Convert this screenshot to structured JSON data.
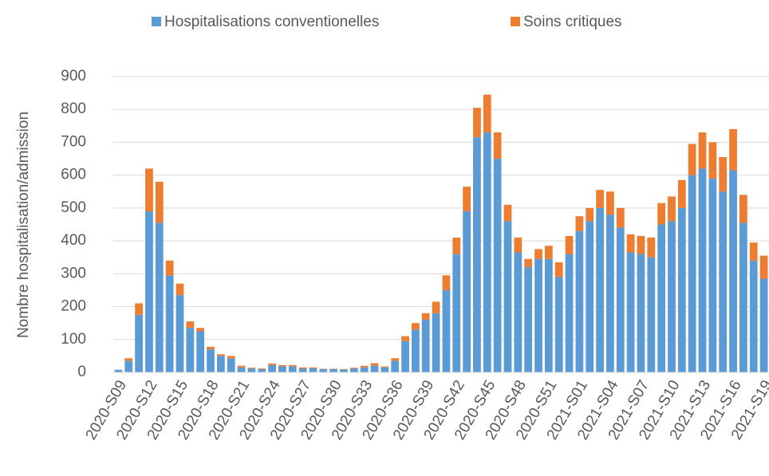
{
  "chart_data": {
    "type": "stacked_bar",
    "y_label": "Nombre hospitalisation/admission",
    "categories": [
      "2020-S09",
      null,
      null,
      "2020-S12",
      null,
      null,
      "2020-S15",
      null,
      null,
      "2020-S18",
      null,
      null,
      "2020-S21",
      null,
      null,
      "2020-S24",
      null,
      null,
      "2020-S27",
      null,
      null,
      "2020-S30",
      null,
      null,
      "2020-S33",
      null,
      null,
      "2020-S36",
      null,
      null,
      "2020-S39",
      null,
      null,
      "2020-S42",
      null,
      null,
      "2020-S45",
      null,
      null,
      "2020-S48",
      null,
      null,
      "2020-S51",
      null,
      null,
      "2021-S01",
      null,
      null,
      "2021-S04",
      null,
      null,
      "2021-S07",
      null,
      null,
      "2021-S10",
      null,
      null,
      "2021-S13",
      null,
      null,
      "2021-S16",
      null,
      null,
      "2021-S19"
    ],
    "series": [
      {
        "name": "Hospitalisations conventionelles",
        "color": "#5b9bd5",
        "values": [
          8,
          35,
          175,
          490,
          455,
          295,
          235,
          135,
          125,
          70,
          50,
          42,
          15,
          12,
          10,
          22,
          18,
          18,
          12,
          12,
          10,
          10,
          9,
          12,
          15,
          20,
          15,
          35,
          95,
          130,
          160,
          180,
          250,
          360,
          490,
          715,
          730,
          650,
          460,
          365,
          320,
          345,
          345,
          290,
          360,
          430,
          460,
          500,
          480,
          440,
          365,
          360,
          350,
          450,
          460,
          500,
          600,
          620,
          590,
          550,
          615,
          455,
          340,
          285
        ]
      },
      {
        "name": "Soins critiques",
        "color": "#ed7d31",
        "values": [
          0,
          8,
          35,
          130,
          125,
          45,
          35,
          20,
          10,
          8,
          5,
          8,
          5,
          2,
          2,
          5,
          4,
          4,
          3,
          3,
          1,
          1,
          1,
          2,
          5,
          8,
          3,
          8,
          15,
          20,
          20,
          35,
          45,
          50,
          75,
          90,
          115,
          80,
          50,
          45,
          25,
          30,
          40,
          45,
          55,
          45,
          40,
          55,
          70,
          60,
          55,
          55,
          60,
          65,
          75,
          85,
          95,
          110,
          110,
          105,
          125,
          85,
          55,
          70
        ]
      }
    ],
    "ylim": [
      0,
      900
    ],
    "yticks": [
      0,
      100,
      200,
      300,
      400,
      500,
      600,
      700,
      800,
      900
    ],
    "grid": true,
    "legend": "top"
  }
}
